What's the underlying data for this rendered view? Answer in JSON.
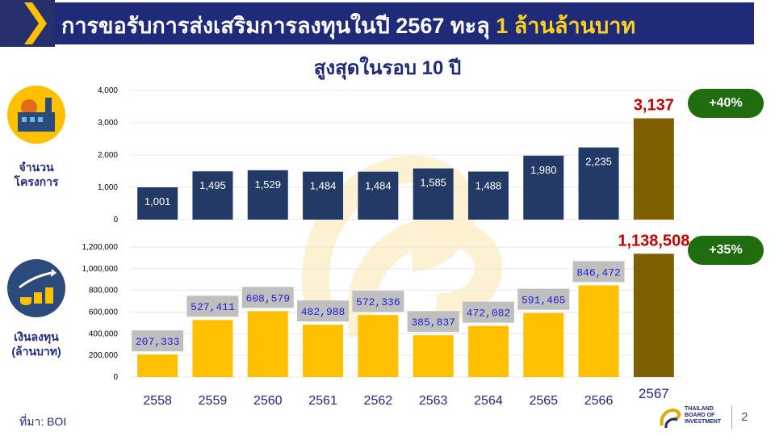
{
  "title": {
    "main": "การขอรับการส่งเสริมการลงทุนในปี 2567 ทะลุ",
    "highlight": "1 ล้านล้านบาท"
  },
  "subtitle": "สูงสุดในรอบ 10 ปี",
  "labels": {
    "projects": "จำนวน\nโครงการ",
    "investment": "เงินลงทุน\n(ล้านบาท)"
  },
  "badges": {
    "projects": "+40%",
    "investment": "+35%"
  },
  "source": "ที่มา: BOI",
  "page_number": "2",
  "logo_text": "THAILAND\nBOARD OF\nINVESTMENT",
  "colors": {
    "navy": "#243a66",
    "gold": "#ffc000",
    "olive": "#7f6000",
    "red": "#c00000",
    "green": "#1f6d0f",
    "title_band": "#1f2a78"
  },
  "chart_data": [
    {
      "type": "bar",
      "categories": [
        "2558",
        "2559",
        "2560",
        "2561",
        "2562",
        "2563",
        "2564",
        "2565",
        "2566",
        "2567"
      ],
      "values": [
        1001,
        1495,
        1529,
        1484,
        1484,
        1585,
        1488,
        1980,
        2235,
        3137
      ],
      "value_labels": [
        "1,001",
        "1,495",
        "1,529",
        "1,484",
        "1,484",
        "1,585",
        "1,488",
        "1,980",
        "2,235",
        "3,137"
      ],
      "yticks": [
        "0",
        "1,000",
        "2,000",
        "3,000",
        "4,000"
      ],
      "ylim": [
        0,
        4000
      ],
      "grid": true
    },
    {
      "type": "bar",
      "categories": [
        "2558",
        "2559",
        "2560",
        "2561",
        "2562",
        "2563",
        "2564",
        "2565",
        "2566",
        "2567"
      ],
      "values": [
        207333,
        527411,
        608579,
        482988,
        572336,
        385837,
        472082,
        591465,
        846472,
        1138508
      ],
      "value_labels": [
        "207,333",
        "527,411",
        "608,579",
        "482,988",
        "572,336",
        "385,837",
        "472,082",
        "591,465",
        "846,472",
        "1,138,508"
      ],
      "yticks": [
        "0",
        "200,000",
        "400,000",
        "600,000",
        "800,000",
        "1,000,000",
        "1,200,000"
      ],
      "ylim": [
        0,
        1200000
      ],
      "grid": true
    }
  ]
}
